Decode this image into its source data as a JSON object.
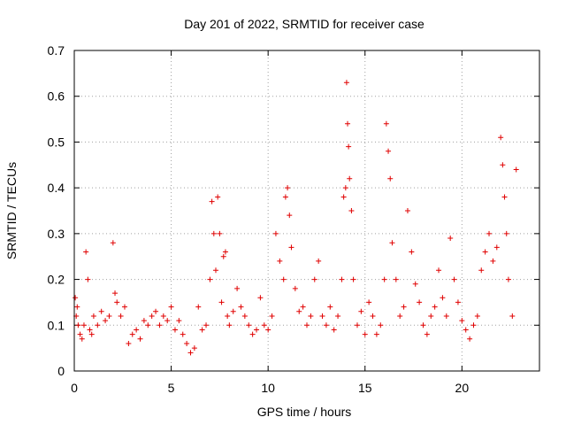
{
  "chart_data": {
    "type": "scatter",
    "title": "Day 201 of 2022, SRMTID for receiver case",
    "xlabel": "GPS time / hours",
    "ylabel": "SRMTID / TECUs",
    "xlim": [
      0,
      24
    ],
    "ylim": [
      0,
      0.7
    ],
    "xticks": [
      0,
      5,
      10,
      15,
      20
    ],
    "yticks": [
      0,
      0.1,
      0.2,
      0.3,
      0.4,
      0.5,
      0.6,
      0.7
    ],
    "xtick_labels": [
      "0",
      "5",
      "10",
      "15",
      "20"
    ],
    "ytick_labels": [
      "0",
      "0.1",
      "0.2",
      "0.3",
      "0.4",
      "0.5",
      "0.6",
      "0.7"
    ],
    "grid": true,
    "marker": "+",
    "series_color": "#e00000",
    "series": [
      {
        "name": "SRMTID",
        "x": [
          0.05,
          0.1,
          0.15,
          0.2,
          0.3,
          0.4,
          0.5,
          0.6,
          0.7,
          0.8,
          0.9,
          1.0,
          1.2,
          1.4,
          1.6,
          1.8,
          2.0,
          2.1,
          2.2,
          2.4,
          2.6,
          2.8,
          3.0,
          3.2,
          3.4,
          3.6,
          3.8,
          4.0,
          4.2,
          4.4,
          4.6,
          4.8,
          5.0,
          5.2,
          5.4,
          5.6,
          5.8,
          6.0,
          6.2,
          6.4,
          6.6,
          6.8,
          7.0,
          7.1,
          7.2,
          7.3,
          7.4,
          7.5,
          7.6,
          7.7,
          7.8,
          7.9,
          8.0,
          8.2,
          8.4,
          8.6,
          8.8,
          9.0,
          9.2,
          9.4,
          9.6,
          9.8,
          10.0,
          10.2,
          10.4,
          10.6,
          10.8,
          10.9,
          11.0,
          11.1,
          11.2,
          11.4,
          11.6,
          11.8,
          12.0,
          12.2,
          12.4,
          12.6,
          12.8,
          13.0,
          13.2,
          13.4,
          13.6,
          13.8,
          13.9,
          14.0,
          14.05,
          14.1,
          14.15,
          14.2,
          14.3,
          14.4,
          14.6,
          14.8,
          15.0,
          15.2,
          15.4,
          15.6,
          15.8,
          16.0,
          16.1,
          16.2,
          16.3,
          16.4,
          16.6,
          16.8,
          17.0,
          17.2,
          17.4,
          17.6,
          17.8,
          18.0,
          18.2,
          18.4,
          18.6,
          18.8,
          19.0,
          19.2,
          19.4,
          19.6,
          19.8,
          20.0,
          20.2,
          20.4,
          20.6,
          20.8,
          21.0,
          21.2,
          21.4,
          21.6,
          21.8,
          22.0,
          22.1,
          22.2,
          22.3,
          22.4,
          22.6,
          22.8
        ],
        "y": [
          0.16,
          0.12,
          0.14,
          0.1,
          0.08,
          0.07,
          0.1,
          0.26,
          0.2,
          0.09,
          0.08,
          0.12,
          0.1,
          0.13,
          0.11,
          0.12,
          0.28,
          0.17,
          0.15,
          0.12,
          0.14,
          0.06,
          0.08,
          0.09,
          0.07,
          0.11,
          0.1,
          0.12,
          0.13,
          0.1,
          0.12,
          0.11,
          0.14,
          0.09,
          0.11,
          0.08,
          0.06,
          0.04,
          0.05,
          0.14,
          0.09,
          0.1,
          0.2,
          0.37,
          0.3,
          0.22,
          0.38,
          0.3,
          0.15,
          0.25,
          0.26,
          0.12,
          0.1,
          0.13,
          0.18,
          0.14,
          0.12,
          0.1,
          0.08,
          0.09,
          0.16,
          0.1,
          0.09,
          0.12,
          0.3,
          0.24,
          0.2,
          0.38,
          0.4,
          0.34,
          0.27,
          0.18,
          0.13,
          0.14,
          0.1,
          0.12,
          0.2,
          0.24,
          0.12,
          0.1,
          0.14,
          0.09,
          0.12,
          0.2,
          0.38,
          0.4,
          0.63,
          0.54,
          0.49,
          0.42,
          0.35,
          0.2,
          0.1,
          0.13,
          0.08,
          0.15,
          0.12,
          0.08,
          0.1,
          0.2,
          0.54,
          0.48,
          0.42,
          0.28,
          0.2,
          0.12,
          0.14,
          0.35,
          0.26,
          0.19,
          0.15,
          0.1,
          0.08,
          0.12,
          0.14,
          0.22,
          0.16,
          0.12,
          0.29,
          0.2,
          0.15,
          0.11,
          0.09,
          0.07,
          0.1,
          0.12,
          0.22,
          0.26,
          0.3,
          0.24,
          0.27,
          0.51,
          0.45,
          0.38,
          0.3,
          0.2,
          0.12,
          0.44
        ]
      }
    ]
  }
}
